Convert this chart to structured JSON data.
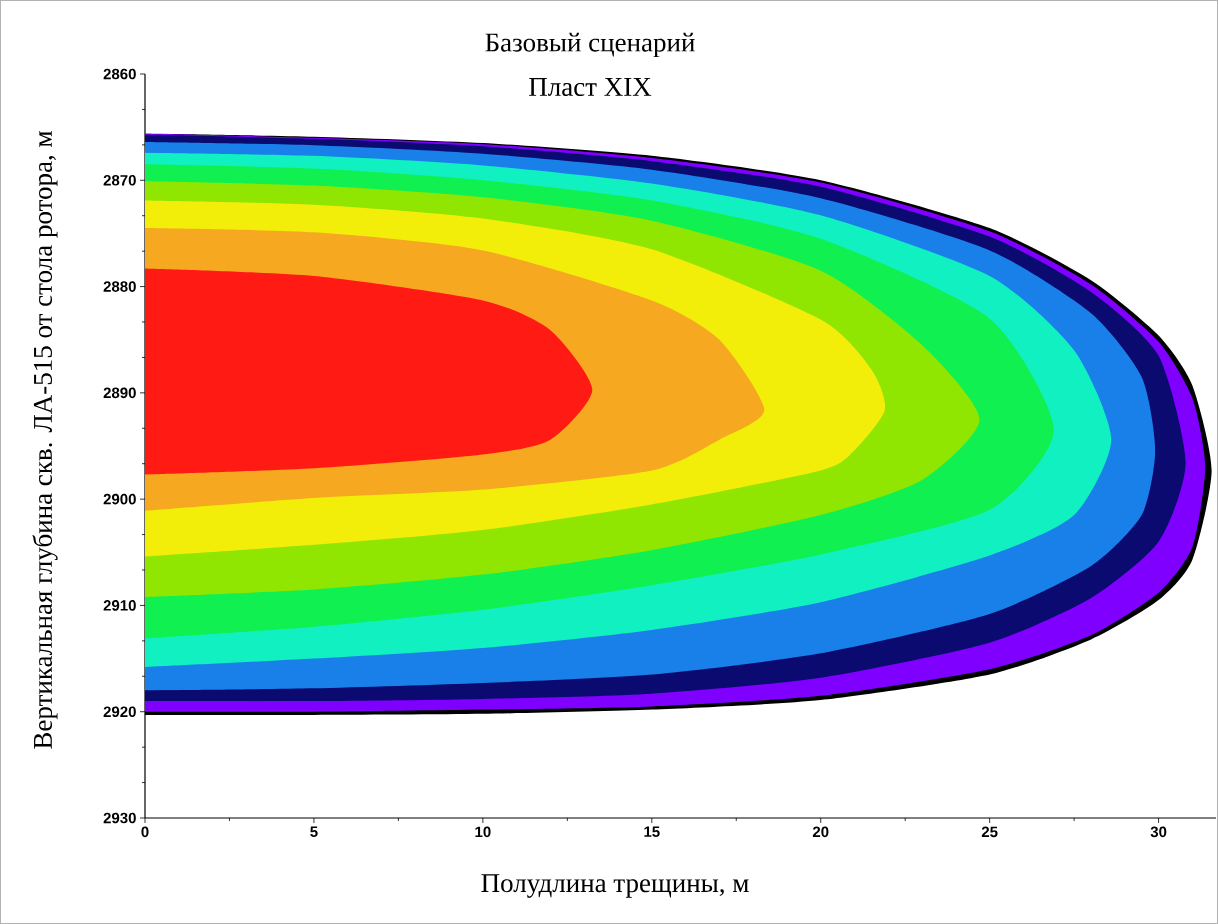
{
  "chart_data": {
    "type": "area",
    "title": "Базовый сценарий",
    "subtitle": "Пласт XIX",
    "xlabel": "Полудлина трещины, м",
    "ylabel": "Вертикальная глубина скв. ЛА-515 от стола ротора, м",
    "xlim": [
      0,
      31.7
    ],
    "xticks": [
      0,
      5,
      10,
      15,
      20,
      25,
      30
    ],
    "ylim": [
      2930,
      2860
    ],
    "yticks": [
      2860,
      2870,
      2880,
      2890,
      2900,
      2910,
      2920,
      2930
    ],
    "grid": false,
    "series": [
      {
        "color": "#000000",
        "x": [
          0,
          5,
          10,
          15,
          20,
          25,
          28,
          30,
          31,
          31.57,
          31,
          30,
          28,
          25,
          20,
          15,
          10,
          5,
          0
        ],
        "values": [
          2865.6,
          2865.9,
          2866.5,
          2867.7,
          2870.0,
          2874.5,
          2879.4,
          2884.6,
          2889.3,
          2897.3,
          2905.7,
          2909.5,
          2913.2,
          2916.5,
          2918.9,
          2919.8,
          2920.2,
          2920.3,
          2920.3
        ]
      },
      {
        "color": "#8000ff",
        "x": [
          0,
          5,
          10,
          15,
          20,
          25,
          28,
          30,
          31,
          31.38,
          31,
          30,
          28,
          25,
          20,
          15,
          10,
          5,
          0
        ],
        "values": [
          2865.6,
          2866.0,
          2866.6,
          2867.9,
          2870.2,
          2874.8,
          2879.8,
          2885.2,
          2890.5,
          2897.0,
          2904.5,
          2908.8,
          2912.8,
          2916.0,
          2918.5,
          2919.5,
          2919.8,
          2920.0,
          2920.0
        ]
      },
      {
        "color": "#0a0a70",
        "x": [
          0,
          5,
          10,
          15,
          20,
          25,
          28,
          30,
          30.8,
          30,
          28,
          25,
          20,
          15,
          10,
          5,
          0
        ],
        "values": [
          2865.7,
          2866.1,
          2866.8,
          2868.2,
          2870.6,
          2875.3,
          2880.5,
          2886.5,
          2896.6,
          2904.0,
          2909.3,
          2913.5,
          2916.8,
          2918.3,
          2918.8,
          2919.0,
          2919.0
        ]
      },
      {
        "color": "#1880e8",
        "x": [
          0,
          5,
          10,
          15,
          20,
          25,
          28,
          29.5,
          29.9,
          29.5,
          28,
          25,
          20,
          15,
          10,
          5,
          0
        ],
        "values": [
          2866.4,
          2866.7,
          2867.5,
          2869.0,
          2871.7,
          2876.6,
          2882.5,
          2888.5,
          2895.4,
          2901.5,
          2906.3,
          2910.8,
          2914.5,
          2916.5,
          2917.3,
          2917.8,
          2918.0
        ]
      },
      {
        "color": "#10f0c0",
        "x": [
          0,
          5,
          10,
          15,
          20,
          25,
          27.5,
          28.6,
          27.5,
          25,
          20,
          15,
          10,
          5,
          0
        ],
        "values": [
          2867.4,
          2867.7,
          2868.6,
          2870.3,
          2873.3,
          2879.0,
          2886.0,
          2894.4,
          2901.5,
          2905.3,
          2909.7,
          2912.3,
          2914.0,
          2915.0,
          2915.8
        ]
      },
      {
        "color": "#10f050",
        "x": [
          0,
          5,
          10,
          15,
          20,
          25,
          26.9,
          25,
          20,
          15,
          10,
          5,
          0
        ],
        "values": [
          2868.5,
          2868.9,
          2870.0,
          2871.9,
          2875.5,
          2883.0,
          2893.5,
          2901.0,
          2905.2,
          2908.1,
          2910.4,
          2912.0,
          2913.1
        ]
      },
      {
        "color": "#90e600",
        "x": [
          0,
          5,
          10,
          15,
          20,
          23,
          24.7,
          23,
          20,
          15,
          10,
          5,
          0
        ],
        "values": [
          2870.1,
          2870.5,
          2871.6,
          2873.8,
          2878.5,
          2885.5,
          2892.5,
          2898.2,
          2901.5,
          2904.8,
          2907.1,
          2908.5,
          2909.2
        ]
      },
      {
        "color": "#f2ee0a",
        "x": [
          0,
          5,
          10,
          15,
          20,
          21.5,
          21.9,
          21,
          20,
          15,
          10,
          5,
          0
        ],
        "values": [
          2871.9,
          2872.3,
          2873.6,
          2876.5,
          2883.1,
          2887.8,
          2891.6,
          2895.4,
          2897.3,
          2900.5,
          2902.9,
          2904.3,
          2905.4
        ]
      },
      {
        "color": "#f5a820",
        "x": [
          0,
          5,
          10,
          15,
          17,
          18.33,
          17,
          15,
          10,
          5,
          0
        ],
        "values": [
          2874.5,
          2874.9,
          2876.6,
          2881.3,
          2885.0,
          2891.6,
          2894.4,
          2897.3,
          2899.1,
          2899.9,
          2901.1
        ]
      },
      {
        "color": "#ff1a14",
        "x": [
          0,
          5,
          10,
          12,
          13.24,
          12,
          10,
          5,
          0
        ],
        "values": [
          2878.3,
          2879.0,
          2881.3,
          2884.1,
          2889.7,
          2894.4,
          2895.8,
          2897.1,
          2897.7
        ]
      }
    ]
  }
}
